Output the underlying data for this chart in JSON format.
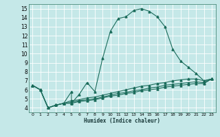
{
  "xlabel": "Humidex (Indice chaleur)",
  "xlim": [
    -0.5,
    23.5
  ],
  "ylim": [
    3.5,
    15.5
  ],
  "yticks": [
    4,
    5,
    6,
    7,
    8,
    9,
    10,
    11,
    12,
    13,
    14,
    15
  ],
  "xticks": [
    0,
    1,
    2,
    3,
    4,
    5,
    6,
    7,
    8,
    9,
    10,
    11,
    12,
    13,
    14,
    15,
    16,
    17,
    18,
    19,
    20,
    21,
    22,
    23
  ],
  "bg_color": "#c5e8e8",
  "line_color": "#1a6b5a",
  "grid_color": "#ffffff",
  "series": [
    {
      "x": [
        0,
        1,
        2,
        3,
        4,
        5,
        5,
        6,
        7,
        8,
        9,
        10,
        11,
        12,
        13,
        14,
        15,
        16,
        17,
        18,
        19,
        20,
        21,
        22,
        23
      ],
      "y": [
        6.5,
        6.0,
        4.0,
        4.3,
        4.5,
        5.8,
        4.5,
        5.5,
        6.8,
        5.8,
        9.5,
        12.5,
        13.9,
        14.1,
        14.8,
        15.0,
        14.7,
        14.1,
        13.0,
        10.5,
        9.2,
        8.5,
        7.8,
        7.0,
        7.2
      ]
    },
    {
      "x": [
        0,
        1,
        2,
        3,
        4,
        5,
        6,
        7,
        8,
        9,
        10,
        11,
        12,
        13,
        14,
        15,
        16,
        17,
        18,
        19,
        20,
        21,
        22,
        23
      ],
      "y": [
        6.5,
        6.0,
        4.0,
        4.3,
        4.5,
        4.8,
        4.9,
        5.1,
        5.2,
        5.4,
        5.6,
        5.8,
        6.0,
        6.2,
        6.4,
        6.5,
        6.7,
        6.8,
        7.0,
        7.1,
        7.2,
        7.2,
        7.0,
        7.2
      ]
    },
    {
      "x": [
        0,
        1,
        2,
        3,
        4,
        5,
        6,
        7,
        8,
        9,
        10,
        11,
        12,
        13,
        14,
        15,
        16,
        17,
        18,
        19,
        20,
        21,
        22,
        23
      ],
      "y": [
        6.5,
        6.0,
        4.0,
        4.3,
        4.5,
        4.6,
        4.8,
        4.9,
        5.0,
        5.2,
        5.4,
        5.6,
        5.7,
        5.9,
        6.0,
        6.2,
        6.3,
        6.5,
        6.6,
        6.7,
        6.8,
        6.9,
        6.8,
        7.2
      ]
    },
    {
      "x": [
        0,
        1,
        2,
        3,
        4,
        5,
        6,
        7,
        8,
        9,
        10,
        11,
        12,
        13,
        14,
        15,
        16,
        17,
        18,
        19,
        20,
        21,
        22,
        23
      ],
      "y": [
        6.5,
        6.0,
        4.0,
        4.3,
        4.5,
        4.5,
        4.7,
        4.8,
        4.9,
        5.1,
        5.3,
        5.4,
        5.6,
        5.7,
        5.9,
        6.0,
        6.1,
        6.3,
        6.4,
        6.5,
        6.6,
        6.7,
        6.7,
        7.2
      ]
    }
  ]
}
